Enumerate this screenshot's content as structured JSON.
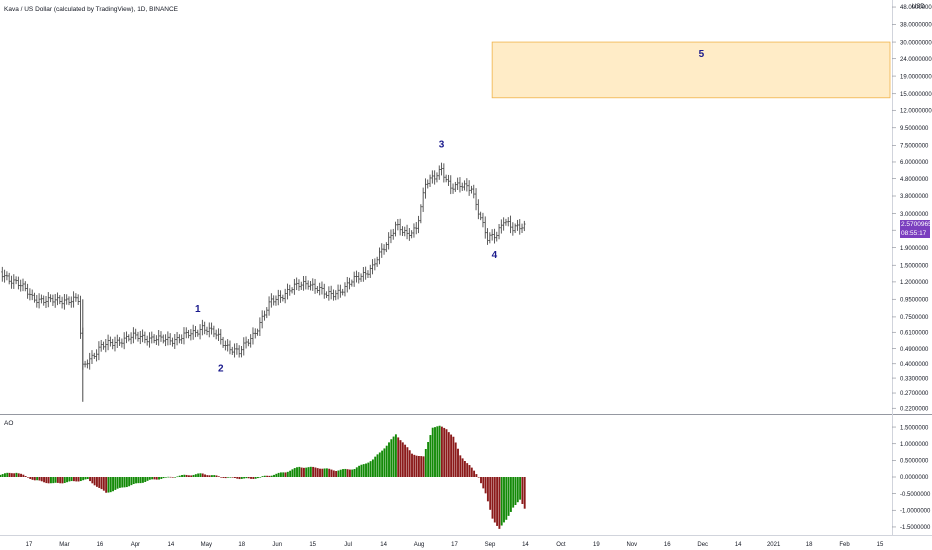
{
  "header": {
    "symbol_title": "Kava / US Dollar (calculated by TradingView), 1D, BINANCE"
  },
  "price_axis": {
    "currency": "USD",
    "last_price": "2.57009654",
    "countdown": "08:55:17",
    "tag_color": "#7b3fbf"
  },
  "indicator": {
    "name": "AO"
  },
  "annotations": {
    "wave1": "1",
    "wave2": "2",
    "wave3": "3",
    "wave4": "4",
    "wave5": "5",
    "label_color": "#1a1a8c",
    "target_box_fill": "#ffecc7",
    "target_box_border": "#f0b34a"
  },
  "time_axis_labels": [
    "17",
    "Mar",
    "16",
    "Apr",
    "14",
    "May",
    "18",
    "Jun",
    "15",
    "Jul",
    "14",
    "Aug",
    "17",
    "Sep",
    "14",
    "Oct",
    "19",
    "Nov",
    "16",
    "Dec",
    "14",
    "2021",
    "18",
    "Feb",
    "15"
  ],
  "chart_data": [
    {
      "type": "ohlc",
      "title": "Kava / US Dollar (calculated by TradingView), 1D, BINANCE",
      "scale": "log",
      "y_tick_labels": [
        "48.0000000",
        "38.0000000",
        "30.0000000",
        "24.0000000",
        "19.0000000",
        "15.0000000",
        "12.0000000",
        "9.5000000",
        "7.5000000",
        "6.0000000",
        "4.8000000",
        "3.8000000",
        "3.0000000",
        "2.4000000",
        "1.9000000",
        "1.5000000",
        "1.2000000",
        "0.9500000",
        "0.7500000",
        "0.6100000",
        "0.4900000",
        "0.4000000",
        "0.3300000",
        "0.2700000",
        "0.2200000"
      ],
      "y_ticks": [
        48,
        38,
        30,
        24,
        19,
        15,
        12,
        9.5,
        7.5,
        6,
        4.8,
        3.8,
        3,
        2.4,
        1.9,
        1.5,
        1.2,
        0.95,
        0.75,
        0.61,
        0.49,
        0.4,
        0.33,
        0.27,
        0.22
      ],
      "ylim": [
        0.215,
        50
      ],
      "x_range": [
        "2020-02-05",
        "2021-02-26"
      ],
      "series_close_path": {
        "dates": [
          "2020-02-05",
          "2020-02-12",
          "2020-02-19",
          "2020-02-26",
          "2020-03-04",
          "2020-03-10",
          "2020-03-12",
          "2020-03-14",
          "2020-03-20",
          "2020-03-28",
          "2020-04-06",
          "2020-04-14",
          "2020-04-22",
          "2020-04-29",
          "2020-05-03",
          "2020-05-08",
          "2020-05-13",
          "2020-05-19",
          "2020-05-26",
          "2020-06-02",
          "2020-06-10",
          "2020-06-18",
          "2020-06-26",
          "2020-07-04",
          "2020-07-10",
          "2020-07-16",
          "2020-07-21",
          "2020-07-26",
          "2020-07-31",
          "2020-08-04",
          "2020-08-08",
          "2020-08-12",
          "2020-08-15",
          "2020-08-19",
          "2020-08-24",
          "2020-08-28",
          "2020-09-01",
          "2020-09-04",
          "2020-09-08",
          "2020-09-11",
          "2020-09-15",
          "2020-09-20"
        ],
        "close": [
          1.35,
          1.2,
          0.98,
          0.92,
          0.95,
          0.93,
          0.38,
          0.42,
          0.5,
          0.55,
          0.58,
          0.55,
          0.56,
          0.6,
          0.66,
          0.6,
          0.52,
          0.46,
          0.62,
          0.92,
          1.08,
          1.2,
          1.0,
          1.1,
          1.3,
          1.45,
          1.9,
          2.6,
          2.2,
          2.5,
          4.5,
          4.8,
          5.5,
          4.3,
          4.3,
          4.3,
          2.8,
          2.1,
          2.3,
          2.8,
          2.4,
          2.57
        ]
      },
      "annotations": [
        {
          "label": "1",
          "date": "2020-05-01",
          "price": 0.8
        },
        {
          "label": "2",
          "date": "2020-05-11",
          "price": 0.36
        },
        {
          "label": "3",
          "date": "2020-08-15",
          "price": 7.3
        },
        {
          "label": "4",
          "date": "2020-09-07",
          "price": 1.65
        },
        {
          "label": "5",
          "date": "2020-12-06",
          "price": 24.5
        }
      ],
      "target_zone": {
        "date_from": "2020-09-06",
        "date_to": "2021-02-26",
        "price_from": 14.2,
        "price_to": 30.0
      }
    },
    {
      "type": "histogram",
      "title": "AO",
      "y_tick_labels": [
        "1.5000000",
        "1.0000000",
        "0.5000000",
        "0.0000000",
        "-0.5000000",
        "-1.0000000",
        "-1.5000000"
      ],
      "y_ticks": [
        1.5,
        1.0,
        0.5,
        0.0,
        -0.5,
        -1.0,
        -1.5
      ],
      "ylim": [
        -1.78,
        1.78
      ],
      "colors": {
        "rising": "#138a07",
        "falling": "#8b1a1a"
      },
      "dates": [
        "2020-02-05",
        "2020-02-12",
        "2020-02-20",
        "2020-02-28",
        "2020-03-06",
        "2020-03-14",
        "2020-03-22",
        "2020-03-30",
        "2020-04-10",
        "2020-04-22",
        "2020-05-03",
        "2020-05-13",
        "2020-05-24",
        "2020-06-02",
        "2020-06-08",
        "2020-06-14",
        "2020-06-22",
        "2020-06-30",
        "2020-07-08",
        "2020-07-16",
        "2020-07-22",
        "2020-07-26",
        "2020-07-29",
        "2020-08-02",
        "2020-08-07",
        "2020-08-11",
        "2020-08-14",
        "2020-08-17",
        "2020-08-20",
        "2020-08-23",
        "2020-08-27",
        "2020-08-31",
        "2020-09-03",
        "2020-09-06",
        "2020-09-09",
        "2020-09-12",
        "2020-09-15",
        "2020-09-18",
        "2020-09-20"
      ],
      "values": [
        0.08,
        0.14,
        -0.1,
        -0.2,
        -0.15,
        -0.08,
        -0.48,
        -0.3,
        -0.1,
        0.03,
        0.1,
        -0.02,
        -0.06,
        0.06,
        0.15,
        0.3,
        0.28,
        0.2,
        0.25,
        0.52,
        0.95,
        1.28,
        1.05,
        0.7,
        0.6,
        1.5,
        1.52,
        1.45,
        1.2,
        0.65,
        0.35,
        0.0,
        -0.5,
        -1.25,
        -1.55,
        -1.3,
        -0.9,
        -0.7,
        -0.95
      ]
    }
  ]
}
